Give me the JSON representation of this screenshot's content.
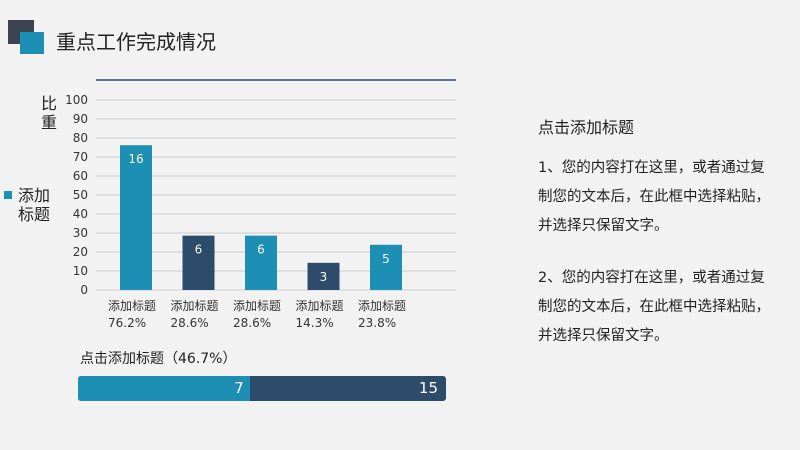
{
  "slide": {
    "title": "重点工作完成情况"
  },
  "colors": {
    "blue": "#1e8fb4",
    "navy": "#2d4b6a",
    "dark_square": "#3c4452",
    "grid": "#cccccc",
    "top_rule": "#2d4b6a"
  },
  "chart_data": {
    "type": "bar",
    "title": "",
    "ylabel": "比重",
    "xlabel": "",
    "ylim": [
      0,
      100
    ],
    "yticks": [
      0,
      10,
      20,
      30,
      40,
      50,
      60,
      70,
      80,
      90,
      100
    ],
    "grid": true,
    "legend": {
      "position": "left",
      "label": "添加标题"
    },
    "categories": [
      {
        "name": "添加标题",
        "sub": "76.2%"
      },
      {
        "name": "添加标题",
        "sub": "28.6%"
      },
      {
        "name": "添加标题",
        "sub": "28.6%"
      },
      {
        "name": "添加标题",
        "sub": "14.3%"
      },
      {
        "name": "添加标题",
        "sub": "23.8%"
      }
    ],
    "values": [
      76.2,
      28.6,
      28.6,
      14.3,
      23.8
    ],
    "data_labels": [
      "16",
      "6",
      "6",
      "3",
      "5"
    ],
    "bar_colors": [
      "#1e8fb4",
      "#2d4b6a",
      "#1e8fb4",
      "#2d4b6a",
      "#1e8fb4"
    ]
  },
  "progress": {
    "title": "点击添加标题（46.7%）",
    "fraction": 0.467,
    "completed_label": "7",
    "total_label": "15"
  },
  "right_panel": {
    "title": "点击添加标题",
    "paragraphs": [
      "1、您的内容打在这里，或者通过复制您的文本后，在此框中选择粘贴，并选择只保留文字。",
      "2、您的内容打在这里，或者通过复制您的文本后，在此框中选择粘贴，并选择只保留文字。"
    ]
  }
}
